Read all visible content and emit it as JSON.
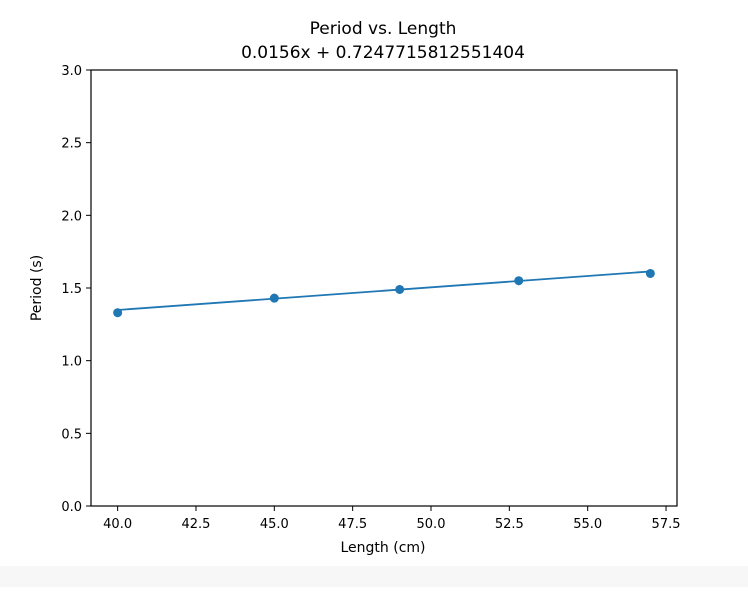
{
  "chart_data": {
    "type": "scatter",
    "title": "Period vs. Length",
    "subtitle": "0.0156x + 0.7247715812551404",
    "xlabel": "Length (cm)",
    "ylabel": "Period (s)",
    "xlim": [
      39.15,
      57.85
    ],
    "ylim": [
      0.0,
      3.0
    ],
    "x_ticks": [
      40.0,
      42.5,
      45.0,
      47.5,
      50.0,
      52.5,
      55.0,
      57.5
    ],
    "x_tick_labels": [
      "40.0",
      "42.5",
      "45.0",
      "47.5",
      "50.0",
      "52.5",
      "55.0",
      "57.5"
    ],
    "y_ticks": [
      0.0,
      0.5,
      1.0,
      1.5,
      2.0,
      2.5,
      3.0
    ],
    "y_tick_labels": [
      "0.0",
      "0.5",
      "1.0",
      "1.5",
      "2.0",
      "2.5",
      "3.0"
    ],
    "grid": false,
    "legend": "none",
    "series": [
      {
        "x": [
          40.0,
          45.0,
          49.0,
          52.8,
          57.0
        ],
        "y": [
          1.33,
          1.43,
          1.49,
          1.55,
          1.6
        ],
        "y_err": [
          0.03,
          0.03,
          0.03,
          0.03,
          0.03
        ],
        "color": "#1f77b4"
      }
    ],
    "fit_line": {
      "slope": 0.0156,
      "intercept": 0.7247715812551404,
      "x_range": [
        40.0,
        57.0
      ],
      "color": "#1f77b4"
    }
  }
}
